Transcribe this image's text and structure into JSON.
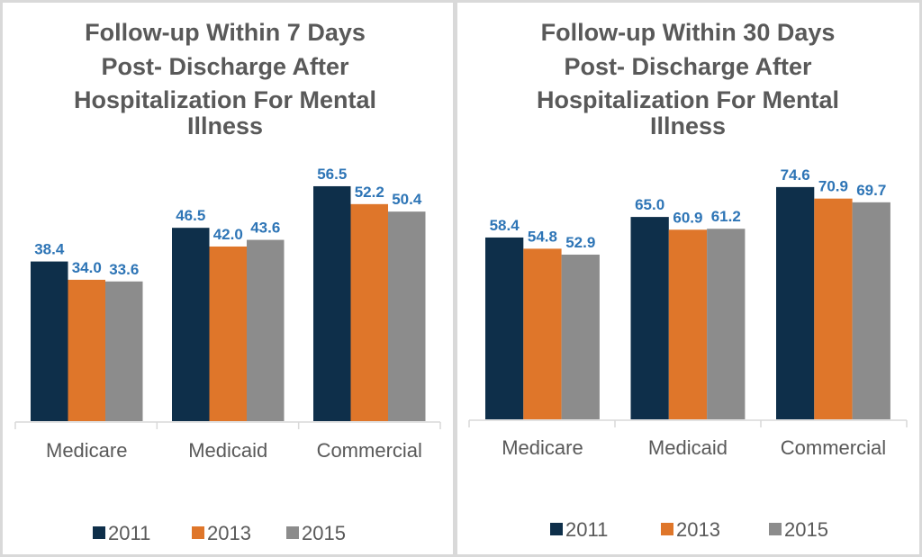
{
  "chart_data": [
    {
      "type": "bar",
      "title": "Follow-up Within 7 Days Post- Discharge After Hospitalization For Mental Illness",
      "title_lines": [
        "Follow-up Within 7 Days",
        "Post- Discharge After",
        "Hospitalization For Mental",
        "Illness"
      ],
      "categories": [
        "Medicare",
        "Medicaid",
        "Commercial"
      ],
      "series": [
        {
          "name": "2011",
          "color": "#0e2f4a",
          "values": [
            38.4,
            46.5,
            56.5
          ]
        },
        {
          "name": "2013",
          "color": "#df762a",
          "values": [
            34.0,
            42.0,
            52.2
          ]
        },
        {
          "name": "2015",
          "color": "#8c8c8c",
          "values": [
            33.6,
            43.6,
            50.4
          ]
        }
      ],
      "data_labels": true,
      "label_color": "#2e75b6",
      "xlabel": "",
      "ylabel": "",
      "ylim": [
        0,
        100
      ],
      "grid": false,
      "legend_position": "bottom"
    },
    {
      "type": "bar",
      "title": "Follow-up Within 30 Days Post- Discharge After Hospitalization For Mental Illness",
      "title_lines": [
        "Follow-up Within 30 Days",
        "Post- Discharge After",
        "Hospitalization For Mental",
        "Illness"
      ],
      "categories": [
        "Medicare",
        "Medicaid",
        "Commercial"
      ],
      "series": [
        {
          "name": "2011",
          "color": "#0e2f4a",
          "values": [
            58.4,
            65.0,
            74.6
          ]
        },
        {
          "name": "2013",
          "color": "#df762a",
          "values": [
            54.8,
            60.9,
            70.9
          ]
        },
        {
          "name": "2015",
          "color": "#8c8c8c",
          "values": [
            52.9,
            61.2,
            69.7
          ]
        }
      ],
      "data_labels": true,
      "label_color": "#2e75b6",
      "xlabel": "",
      "ylabel": "",
      "ylim": [
        0,
        100
      ],
      "grid": false,
      "legend_position": "bottom"
    }
  ]
}
